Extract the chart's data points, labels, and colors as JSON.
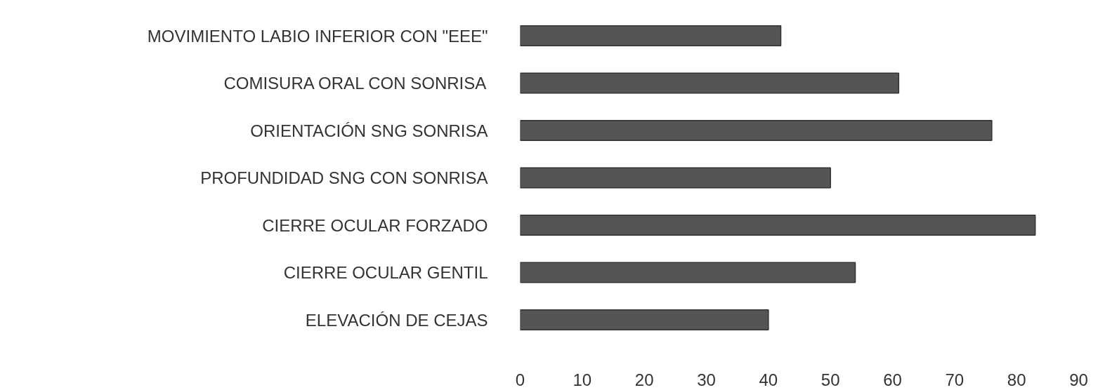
{
  "chart_data": {
    "type": "bar",
    "orientation": "horizontal",
    "categories": [
      "MOVIMIENTO LABIO INFERIOR CON \"EEE\"",
      "COMISURA ORAL CON SONRISA",
      "ORIENTACIÓN SNG SONRISA",
      "PROFUNDIDAD SNG CON SONRISA",
      "CIERRE OCULAR FORZADO",
      "CIERRE OCULAR GENTIL",
      "ELEVACIÓN DE CEJAS"
    ],
    "values": [
      42,
      61,
      76,
      50,
      83,
      54,
      40
    ],
    "color": "#555555",
    "xlim": [
      0,
      90
    ],
    "xticks": [
      0,
      10,
      20,
      30,
      40,
      50,
      60,
      70,
      80,
      90
    ],
    "grid": false
  }
}
